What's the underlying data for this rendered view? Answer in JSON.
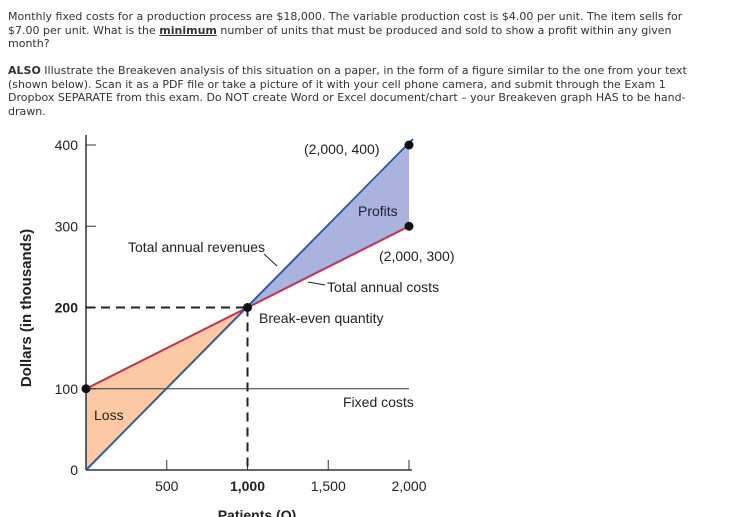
{
  "question": {
    "prefix": "Monthly fixed costs for a production process are $18,000.  The variable production cost is $4.00 per unit.  The item sells for $7.00 per unit. What is the ",
    "emphasis": "minimum",
    "suffix": " number of units that must be produced and sold to show a profit within any given month?"
  },
  "also": {
    "lead": "ALSO",
    "body": " Illustrate the Breakeven analysis of this situation on a paper, in the form of a figure similar to the one from your text (shown below). Scan it as a PDF file or take a picture of it with your cell phone camera, and submit through the Exam 1 Dropbox SEPARATE from this exam. Do NOT create Word or Excel document/chart – your Breakeven graph HAS to be hand-drawn."
  },
  "chart_data": {
    "type": "line",
    "xlabel": "Patients (Q)",
    "ylabel": "Dollars (in thousands)",
    "xlim": [
      0,
      2000
    ],
    "ylim": [
      0,
      400
    ],
    "x_ticks": [
      {
        "value": 500,
        "label": "500"
      },
      {
        "value": 1000,
        "label": "1,000"
      },
      {
        "value": 1500,
        "label": "1,500"
      },
      {
        "value": 2000,
        "label": "2,000"
      }
    ],
    "y_ticks": [
      {
        "value": 0,
        "label": "0"
      },
      {
        "value": 100,
        "label": "100"
      },
      {
        "value": 200,
        "label": "200"
      },
      {
        "value": 300,
        "label": "300"
      },
      {
        "value": 400,
        "label": "400"
      }
    ],
    "series": [
      {
        "name": "Total annual revenues",
        "x": [
          0,
          2000
        ],
        "y": [
          0,
          400
        ],
        "color": "#2a5caa"
      },
      {
        "name": "Total annual costs",
        "x": [
          0,
          2000
        ],
        "y": [
          100,
          300
        ],
        "color": "#d0303a"
      },
      {
        "name": "Fixed costs",
        "x": [
          0,
          2000
        ],
        "y": [
          100,
          100
        ],
        "color": "#333333"
      }
    ],
    "points": [
      {
        "x": 0,
        "y": 100
      },
      {
        "x": 1000,
        "y": 200
      },
      {
        "x": 2000,
        "y": 400
      },
      {
        "x": 2000,
        "y": 300
      }
    ],
    "regions": {
      "loss": {
        "label": "Loss",
        "color": "#fbc9a3"
      },
      "profit": {
        "label": "Profits",
        "color": "#aab2de"
      }
    },
    "annotations": {
      "point_top": "(2,000, 400)",
      "point_cost": "(2,000, 300)",
      "breakeven": "Break-even quantity",
      "revenues": "Total annual revenues",
      "costs": "Total annual costs",
      "fixed": "Fixed costs"
    }
  }
}
